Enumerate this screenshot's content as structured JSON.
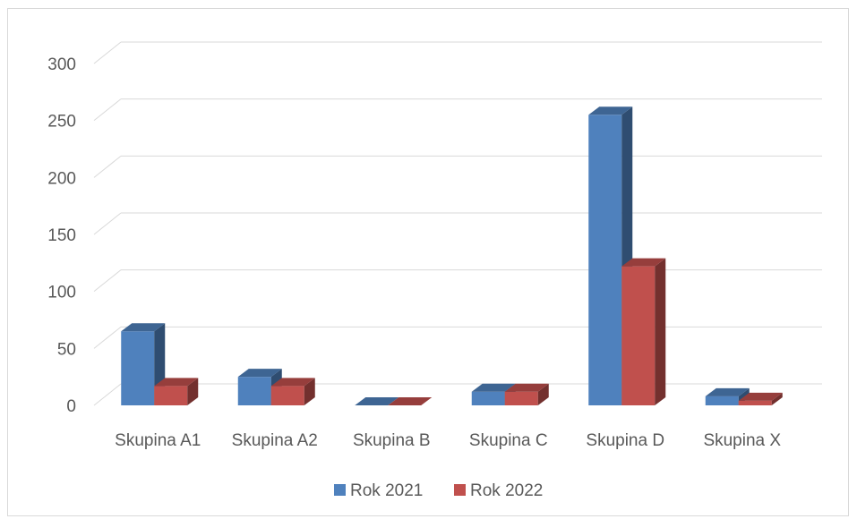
{
  "chart_data": {
    "type": "bar",
    "title": "",
    "xlabel": "",
    "ylabel": "",
    "categories": [
      "Skupina A1",
      "Skupina A2",
      "Skupina B",
      "Skupina C",
      "Skupina D",
      "Skupina X"
    ],
    "series": [
      {
        "name": "Rok 2021",
        "color": "#4f81bd",
        "values": [
          65,
          25,
          0,
          12,
          255,
          8
        ]
      },
      {
        "name": "Rok 2022",
        "color": "#c0504d",
        "values": [
          17,
          17,
          0,
          12,
          122,
          4
        ]
      }
    ],
    "ylim": [
      0,
      300
    ],
    "yticks": [
      "0",
      "50",
      "100",
      "150",
      "200",
      "250",
      "300"
    ],
    "grid": true,
    "legend_position": "bottom",
    "style": "3d-clustered-column"
  }
}
